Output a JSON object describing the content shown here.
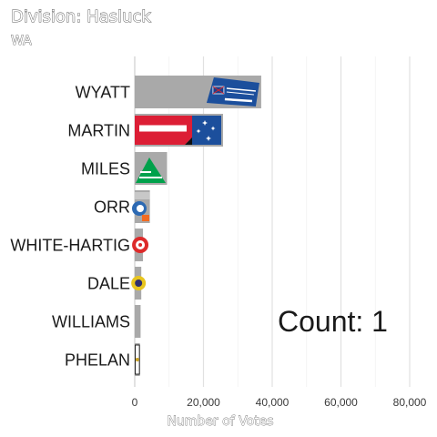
{
  "chart_data": {
    "type": "bar",
    "orientation": "horizontal",
    "title": "Division: Hasluck",
    "subtitle": "WA",
    "xlabel": "Number of Votes",
    "ylabel": "",
    "xlim": [
      0,
      90000
    ],
    "xticks": [
      0,
      20000,
      40000,
      60000,
      80000
    ],
    "xtick_labels": [
      "0",
      "20,000",
      "40,000",
      "60,000",
      "80,000"
    ],
    "grid": true,
    "categories": [
      "WYATT",
      "MARTIN",
      "MILES",
      "ORR",
      "WHITE-HARTIG",
      "DALE",
      "WILLIAMS",
      "PHELAN"
    ],
    "values": [
      36800,
      25700,
      9400,
      4400,
      2400,
      1900,
      1700,
      1500
    ],
    "party_logos": [
      "Liberal",
      "Labor",
      "The Greens",
      "One Nation",
      "",
      "",
      "",
      ""
    ],
    "annotation": "Count:  1",
    "bar_color": "#a9a9a9"
  }
}
